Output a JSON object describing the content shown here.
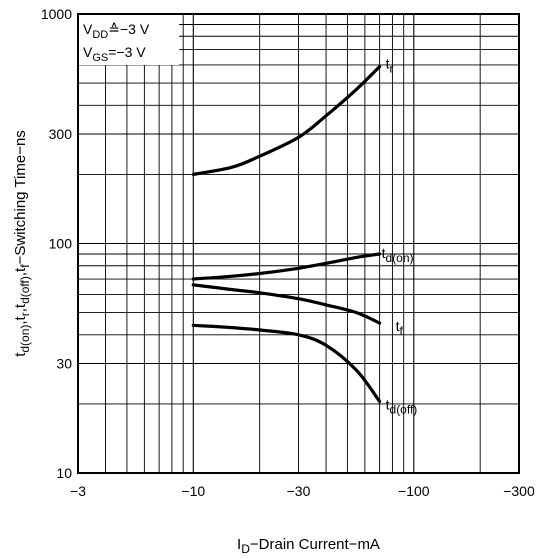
{
  "chart_data": {
    "type": "line",
    "xscale": "log",
    "yscale": "log",
    "xlim": [
      -3,
      -300
    ],
    "ylim": [
      10,
      1000
    ],
    "xticks": [
      {
        "value": -3,
        "label": "−3"
      },
      {
        "value": -10,
        "label": "−10"
      },
      {
        "value": -30,
        "label": "−30"
      },
      {
        "value": -100,
        "label": "−100"
      },
      {
        "value": -300,
        "label": "−300"
      }
    ],
    "yticks": [
      {
        "value": 10,
        "label": "10"
      },
      {
        "value": 30,
        "label": "30"
      },
      {
        "value": 100,
        "label": "100"
      },
      {
        "value": 300,
        "label": "300"
      },
      {
        "value": 1000,
        "label": "1000"
      }
    ],
    "xlabel": {
      "main": "I",
      "sub": "D",
      "rest": "−Drain Current−mA"
    },
    "ylabel": {
      "segments": [
        {
          "t": "t",
          "sub": false
        },
        {
          "t": "d(on)",
          "sub": true
        },
        {
          "t": ",t",
          "sub": false
        },
        {
          "t": "r",
          "sub": true
        },
        {
          "t": ",t",
          "sub": false
        },
        {
          "t": "d(off)",
          "sub": true
        },
        {
          "t": ",t",
          "sub": false
        },
        {
          "t": "f",
          "sub": true
        },
        {
          "t": "−Switching Time−ns",
          "sub": false
        }
      ]
    },
    "conditions": [
      {
        "main": "V",
        "sub": "DD",
        "rest": "≙−3 V"
      },
      {
        "main": "V",
        "sub": "GS",
        "rest": "=−3 V"
      }
    ],
    "grid": true,
    "series": [
      {
        "name": "t",
        "sub": "r",
        "x": [
          -10,
          -15,
          -20,
          -30,
          -40,
          -55,
          -70
        ],
        "y": [
          200,
          215,
          240,
          290,
          360,
          470,
          590
        ]
      },
      {
        "name": "t",
        "sub": "d(on)",
        "x": [
          -10,
          -15,
          -20,
          -30,
          -40,
          -55,
          -70
        ],
        "y": [
          70,
          72,
          74,
          78,
          82,
          87,
          90
        ]
      },
      {
        "name": "t",
        "sub": "f",
        "x": [
          -10,
          -15,
          -20,
          -30,
          -40,
          -55,
          -70
        ],
        "y": [
          66,
          63,
          61,
          57.5,
          54,
          50,
          45
        ]
      },
      {
        "name": "t",
        "sub": "d(off)",
        "x": [
          -10,
          -15,
          -20,
          -30,
          -40,
          -55,
          -70
        ],
        "y": [
          44,
          43,
          42,
          40,
          36,
          28,
          20.5
        ]
      }
    ]
  }
}
